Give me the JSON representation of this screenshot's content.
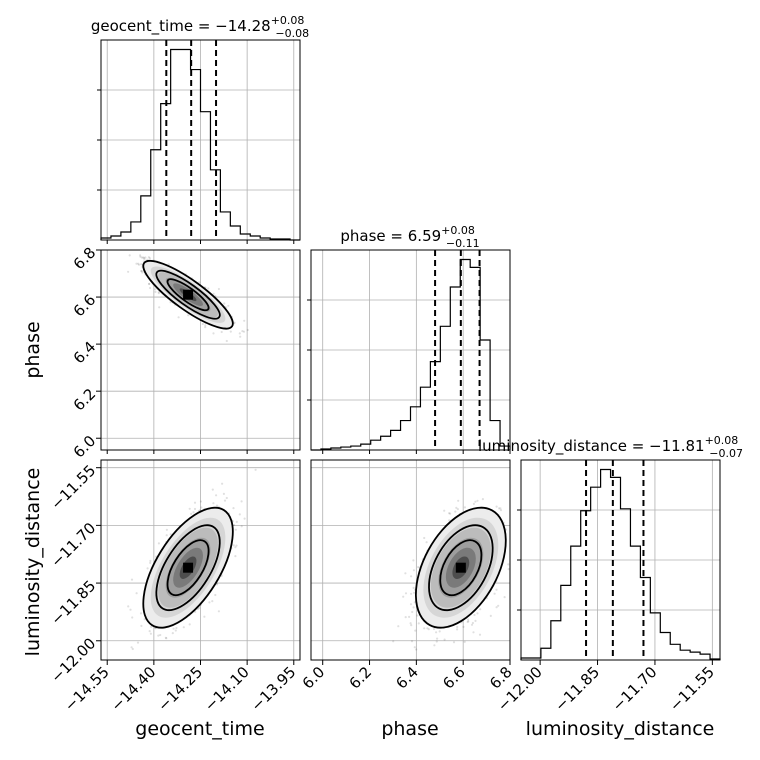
{
  "chart_data": {
    "type": "corner",
    "parameters": [
      {
        "name": "geocent_time",
        "title_label": "geocent_time = ",
        "median": "−14.28",
        "plus": "+0.08",
        "minus": "−0.08",
        "median_value": -14.28,
        "plus_value": 0.08,
        "minus_value": 0.08,
        "range": [
          -14.57,
          -13.93
        ],
        "ticks": [
          -14.55,
          -14.4,
          -14.25,
          -14.1,
          -13.95
        ],
        "tick_labels": [
          "−14.55",
          "−14.40",
          "−14.25",
          "−14.10",
          "−13.95"
        ],
        "hist_edges": [
          -14.57,
          -14.538,
          -14.506,
          -14.474,
          -14.442,
          -14.41,
          -14.378,
          -14.346,
          -14.314,
          -14.282,
          -14.25,
          -14.218,
          -14.186,
          -14.154,
          -14.122,
          -14.09,
          -14.058,
          -14.026,
          -13.994,
          -13.962,
          -13.93
        ],
        "hist_counts": [
          1,
          2,
          4,
          9,
          22,
          45,
          68,
          95,
          95,
          85,
          64,
          35,
          14,
          7,
          3,
          2,
          1,
          0.5,
          0.5,
          0
        ]
      },
      {
        "name": "phase",
        "title_label": "phase = ",
        "median": "6.59",
        "plus": "+0.08",
        "minus": "−0.11",
        "median_value": 6.59,
        "plus_value": 0.08,
        "minus_value": 0.11,
        "range": [
          5.95,
          6.8
        ],
        "ticks": [
          6.0,
          6.2,
          6.4,
          6.6,
          6.8
        ],
        "tick_labels": [
          "6.0",
          "6.2",
          "6.4",
          "6.6",
          "6.8"
        ],
        "hist_edges": [
          5.95,
          5.9925,
          6.035,
          6.0775,
          6.12,
          6.1625,
          6.205,
          6.2475,
          6.29,
          6.3325,
          6.375,
          6.4175,
          6.46,
          6.5025,
          6.545,
          6.5875,
          6.63,
          6.6725,
          6.715,
          6.7575,
          6.8
        ],
        "hist_counts": [
          0,
          0.5,
          1,
          1.5,
          2,
          3,
          5,
          7,
          10,
          15,
          22,
          32,
          45,
          63,
          83,
          97,
          93,
          56,
          15,
          2
        ]
      },
      {
        "name": "luminosity_distance",
        "title_label": "luminosity_distance = ",
        "median": "−11.81",
        "plus": "+0.08",
        "minus": "−0.07",
        "median_value": -11.81,
        "plus_value": 0.08,
        "minus_value": 0.07,
        "range": [
          -12.05,
          -11.53
        ],
        "ticks": [
          -12.0,
          -11.85,
          -11.7,
          -11.55
        ],
        "tick_labels": [
          "−12.00",
          "−11.85",
          "−11.70",
          "−11.55"
        ],
        "hist_edges": [
          -12.05,
          -12.024,
          -11.998,
          -11.972,
          -11.946,
          -11.92,
          -11.894,
          -11.868,
          -11.842,
          -11.816,
          -11.79,
          -11.764,
          -11.738,
          -11.712,
          -11.686,
          -11.66,
          -11.634,
          -11.608,
          -11.582,
          -11.556,
          -11.53
        ],
        "hist_counts": [
          1,
          1,
          6,
          20,
          38,
          58,
          76,
          88,
          97,
          93,
          77,
          58,
          42,
          24,
          14,
          8,
          5,
          4,
          3,
          0.5
        ]
      }
    ],
    "pairs": [
      {
        "x": "geocent_time",
        "y": "phase",
        "y_ticks": [
          6.0,
          6.2,
          6.4,
          6.6,
          6.8
        ],
        "y_tick_labels": [
          "6.0",
          "6.2",
          "6.4",
          "6.6",
          "6.8"
        ],
        "center": [
          -14.29,
          6.61
        ],
        "spread": [
          0.06,
          0.06
        ],
        "correlation": -0.85
      },
      {
        "x": "geocent_time",
        "y": "luminosity_distance",
        "y_ticks": [
          -12.0,
          -11.85,
          -11.7,
          -11.55
        ],
        "y_tick_labels": [
          "−12.00",
          "−11.85",
          "−11.70",
          "−11.55"
        ],
        "center": [
          -14.29,
          -11.81
        ],
        "spread": [
          0.06,
          0.065
        ],
        "correlation": 0.6
      },
      {
        "x": "phase",
        "y": "luminosity_distance",
        "center": [
          6.59,
          -11.81
        ],
        "spread": [
          0.08,
          0.065
        ],
        "correlation": 0.45
      }
    ],
    "axis_labels": {
      "x": [
        "geocent_time",
        "phase",
        "luminosity_distance"
      ],
      "y": [
        "phase",
        "luminosity_distance"
      ]
    },
    "grid": true,
    "quantile_lines": "dashed"
  }
}
